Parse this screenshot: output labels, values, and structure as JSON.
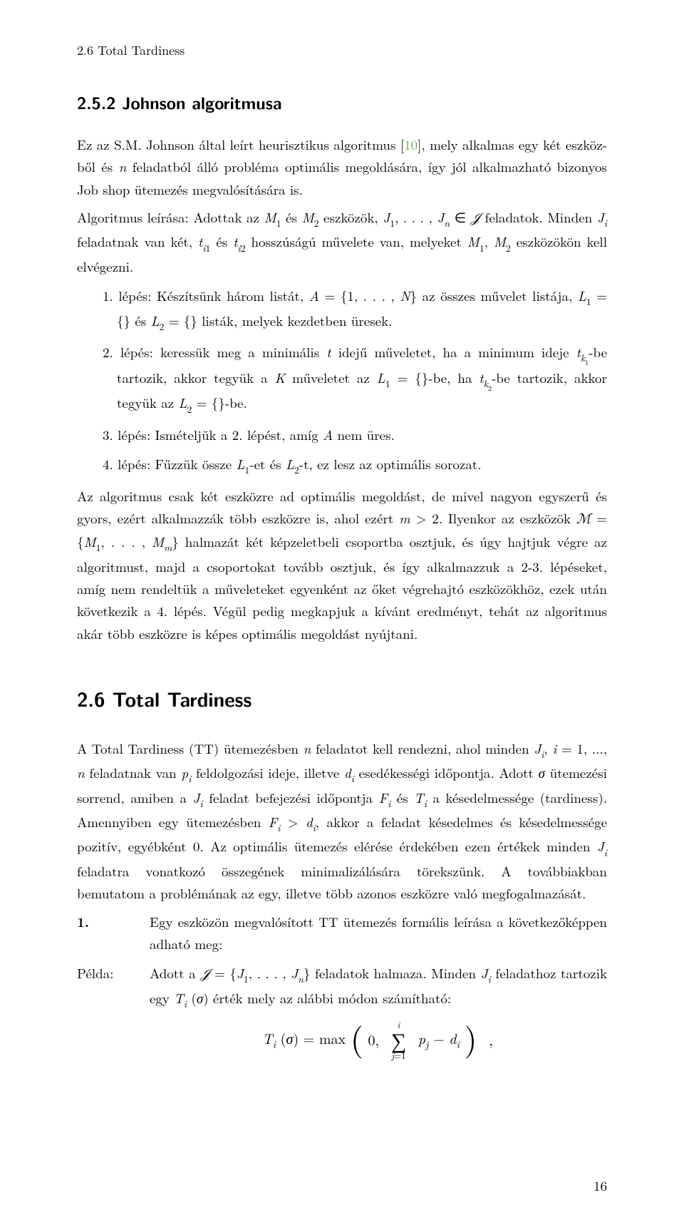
{
  "header": {
    "running": "2.6 Total Tardiness"
  },
  "subsection": {
    "numberTitle": "2.5.2 Johnson algoritmusa"
  },
  "intro": {
    "p1_pre": "Ez az S.M. Johnson által leírt heurisztikus algoritmus [",
    "citeNum": "10",
    "p1_post": "], mely alkalmas egy két eszköz-ből és n feladatból álló probléma optimális megoldására, így jól alkalmazható bizonyos Job shop ütemezés megvalósítására is.",
    "p2": "Algoritmus leírása: Adottak az M₁ és M₂ eszközök, J₁, . . . , Jₙ ∈ 𝒥 feladatok. Minden Jᵢ feladatnak van két, tᵢ₁ és tᵢ₂ hosszúságú művelete van, melyeket M₁, M₂ eszközökön kell elvégezni."
  },
  "steps": {
    "s1": "1. lépés: Készítsünk három listát, A = {1, . . . , N} az összes művelet listája, L₁ = {} és L₂ = {} listák, melyek kezdetben üresek.",
    "s2": "2. lépés: keressük meg a minimális t idejű műveletet, ha a minimum ideje t_{k₁}-be tartozik, akkor tegyük a K műveletet az L₁ = {}-be, ha t_{k₂}-be tartozik, akkor tegyük az L₂ = {}-be.",
    "s3": "3. lépés: Ismételjük a 2. lépést, amíg A nem üres.",
    "s4": "4. lépés: Fűzzük össze L₁-et és L₂-t, ez lesz az optimális sorozat."
  },
  "after": {
    "p1": "Az algoritmus csak két eszközre ad optimális megoldást, de mivel nagyon egyszerű és gyors, ezért alkalmazzák több eszközre is, ahol ezért m > 2. Ilyenkor az eszközök ℳ = {M₁, . . . , Mₘ} halmazát két képzeletbeli csoportba osztjuk, és úgy hajtjuk végre az algoritmust, majd a csoportokat tovább osztjuk, és így alkalmazzuk a 2-3. lépéseket, amíg nem rendeltük a műveleteket egyenként az őket végrehajtó eszközökhöz, ezek után következik a 4. lépés. Végül pedig megkapjuk a kívánt eredményt, tehát az algoritmus akár több eszközre is képes optimális megoldást nyújtani."
  },
  "section": {
    "title": "2.6 Total Tardiness"
  },
  "tt": {
    "p1": "A Total Tardiness (TT) ütemezésben n feladatot kell rendezni, ahol minden Jᵢ, i = 1, ..., n feladatnak van pᵢ feldolgozási ideje, illetve dᵢ esedékességi időpontja. Adott σ ütemezési sorrend, amiben a Jᵢ feladat befejezési időpontja Fᵢ és Tᵢ a késedelmessége (tardiness). Amennyiben egy ütemezésben Fᵢ > dᵢ, akkor a feladat késedelmes és késedelmessége pozitív, egyébként 0. Az optimális ütemezés elérése érdekében ezen értékek minden Jᵢ feladatra vonatkozó összegének minimalizálására törekszünk. A továbbiakban bemutatom a problémának az egy, illetve több azonos eszközre való megfogalmazását."
  },
  "defs": {
    "label1": "1.",
    "content1": "Egy eszközön megvalósított TT ütemezés formális leírása a következőképpen adható meg:",
    "label2": "Példa:",
    "content2": "Adott a 𝒥 = {J₁, . . . , Jₙ} feladatok halmaza. Minden Jᵢ feladathoz tartozik egy Tᵢ (σ) érték mely az alábbi módon számítható:"
  },
  "equation": {
    "text": "Tᵢ (σ) = max ⎛0, ∑ⱼ₌₁ⁱ pⱼ − dᵢ⎞ ,"
  },
  "pageNumber": "16",
  "styling": {
    "citeColor": "#6aab4f",
    "textColor": "#000000",
    "backgroundColor": "#ffffff",
    "bodyFontSize": 19,
    "lineHeight": 1.65,
    "subsectionFontSize": 24,
    "sectionFontSize": 28,
    "pageWidth": 960,
    "pageHeight": 1718
  }
}
